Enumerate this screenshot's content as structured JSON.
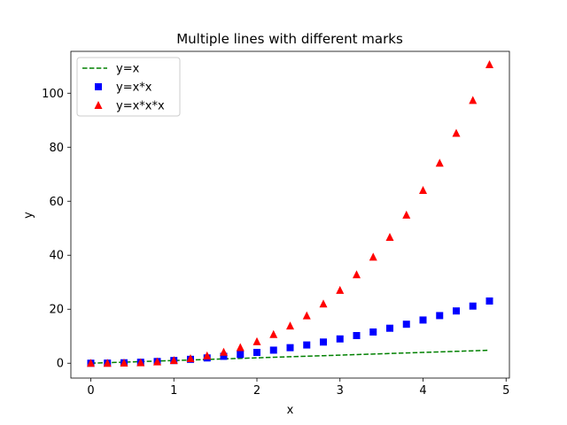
{
  "chart_data": {
    "type": "line",
    "title": "Multiple lines with different marks",
    "xlabel": "x",
    "ylabel": "y",
    "xlim": [
      -0.24,
      5.04
    ],
    "ylim": [
      -5.5,
      115.5
    ],
    "xticks": [
      0,
      1,
      2,
      3,
      4,
      5
    ],
    "yticks": [
      0,
      20,
      40,
      60,
      80,
      100
    ],
    "grid": false,
    "legend_position": "top-left",
    "x": [
      0,
      0.2,
      0.4,
      0.6,
      0.8,
      1.0,
      1.2,
      1.4,
      1.6,
      1.8,
      2.0,
      2.2,
      2.4,
      2.6,
      2.8,
      3.0,
      3.2,
      3.4,
      3.6,
      3.8,
      4.0,
      4.2,
      4.4,
      4.6,
      4.8
    ],
    "series": [
      {
        "name": "y=x",
        "style": "dashed-line",
        "color": "#008000",
        "values": [
          0,
          0.2,
          0.4,
          0.6,
          0.8,
          1.0,
          1.2,
          1.4,
          1.6,
          1.8,
          2.0,
          2.2,
          2.4,
          2.6,
          2.8,
          3.0,
          3.2,
          3.4,
          3.6,
          3.8,
          4.0,
          4.2,
          4.4,
          4.6,
          4.8
        ]
      },
      {
        "name": "y=x*x",
        "style": "square-markers",
        "color": "#0000ff",
        "values": [
          0,
          0.04,
          0.16,
          0.36,
          0.64,
          1.0,
          1.44,
          1.96,
          2.56,
          3.24,
          4.0,
          4.84,
          5.76,
          6.76,
          7.84,
          9.0,
          10.24,
          11.56,
          12.96,
          14.44,
          16.0,
          17.64,
          19.36,
          21.16,
          23.04
        ]
      },
      {
        "name": "y=x*x*x",
        "style": "triangle-markers",
        "color": "#ff0000",
        "values": [
          0,
          0.008,
          0.064,
          0.216,
          0.512,
          1.0,
          1.728,
          2.744,
          4.096,
          5.832,
          8.0,
          10.648,
          13.824,
          17.576,
          21.952,
          27.0,
          32.768,
          39.304,
          46.656,
          54.872,
          64.0,
          74.088,
          85.184,
          97.336,
          110.592
        ]
      }
    ]
  }
}
